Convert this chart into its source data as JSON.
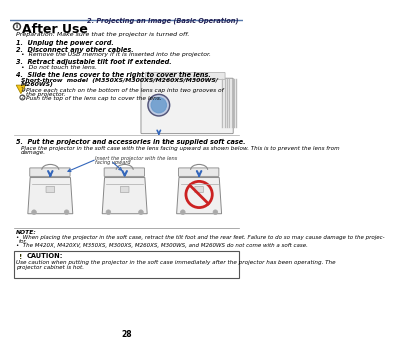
{
  "page_num": "28",
  "header_text": "2. Projecting an Image (Basic Operation)",
  "section_title": "After Use",
  "preparation": "Preparation: Make sure that the projector is turned off.",
  "item1_bold": "Unplug the power cord.",
  "item2_bold": "Disconnect any other cables.",
  "item2_bullet": "Remove the USB memory if it is inserted into the projector.",
  "item3_bold": "Retract adjustable tilt foot if extended.",
  "item3_bullet": "Do not touch the lens.",
  "item4_bold": "Slide the lens cover to the right to cover the lens.",
  "item4_sub": "Short-throw  model  (M350XS/M300XS/M260XS/M300WS/",
  "item4_sub2": "M260WS)",
  "item4_c1": "Place each catch on the bottom of the lens cap into two grooves of",
  "item4_c1b": "the projector.",
  "item4_c2": "Push the top of the lens cap to cover the lens.",
  "item5_bold": "Put the projector and accessories in the supplied soft case.",
  "item5_text1": "Place the projector in the soft case with the lens facing upward as shown below. This is to prevent the lens from",
  "item5_text2": "damage.",
  "arrow_label1": "Insert the projector with the lens",
  "arrow_label2": "facing upward",
  "note_title": "NOTE:",
  "note_line1": "When placing the projector in the soft case, retract the tilt foot and the rear feet. Failure to do so may cause damage to the projec-",
  "note_line1b": "tor.",
  "note_line2": "The M420X, M420XV, M350XS, M300XS, M260XS, M300WS, and M260WS do not come with a soft case.",
  "caution_title": "CAUTION:",
  "caution_text1": "Use caution when putting the projector in the soft case immediately after the projector has been operating. The",
  "caution_text2": "projector cabinet is hot.",
  "bg_color": "#ffffff",
  "text_color": "#000000",
  "header_line_color": "#5577aa",
  "note_line_color": "#888888",
  "caution_bg": "#ffffff",
  "caution_border": "#666666",
  "blue_arrow": "#3366bb",
  "red_no": "#cc2222"
}
